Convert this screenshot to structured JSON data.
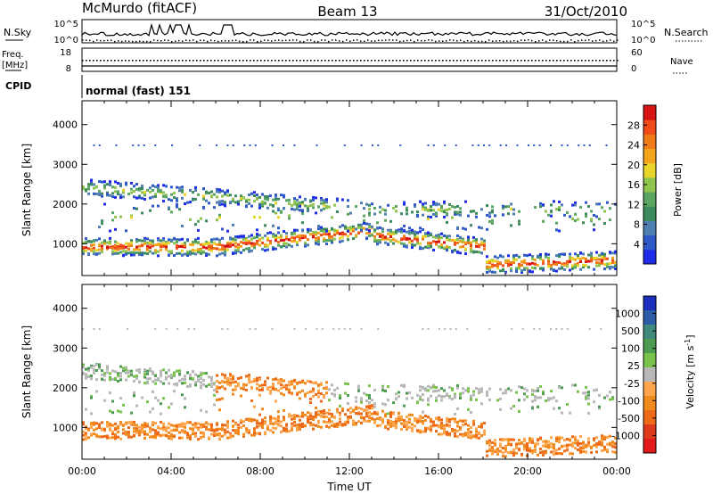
{
  "header": {
    "title": "McMurdo (fitACF)",
    "beam": "Beam 13",
    "date": "31/Oct/2010"
  },
  "top_panels": {
    "nsky_label": "N.Sky",
    "nsearch_label": "N.Search",
    "nsky_ticks": [
      "10^5",
      "10^0"
    ],
    "nsearch_ticks": [
      "10^5",
      "10^0"
    ],
    "freq_label_1": "Freq.",
    "freq_label_2": "[MHz]",
    "freq_ticks": [
      "18",
      "8"
    ],
    "nave_label": "Nave",
    "nave_ticks": [
      "60",
      "0"
    ],
    "cpid_label": "CPID",
    "cpid_value": "normal (fast) 151"
  },
  "colors": {
    "power_scale": [
      "#1e2be8",
      "#2f58c8",
      "#4f7fb2",
      "#3d8a5e",
      "#5aa562",
      "#8fc44f",
      "#e7d52a",
      "#f4a51e",
      "#f07a18",
      "#ef4a18",
      "#d71414"
    ],
    "velocity_scale": [
      "#1c2fbd",
      "#2c5ca8",
      "#3f8a7a",
      "#4e9b52",
      "#79c34c",
      "#b8b8b8",
      "#ffa64d",
      "#f08a1c",
      "#ee6a19",
      "#e03a1c",
      "#e21a1a"
    ]
  },
  "chart_data": [
    {
      "type": "heatmap",
      "title": "Power",
      "xlabel": "",
      "ylabel": "Slant Range [km]",
      "colorbar_label": "Power [dB]",
      "colorbar_ticks": [
        "28",
        "24",
        "20",
        "16",
        "12",
        "8",
        "4"
      ],
      "colorbar_values": [
        28,
        24,
        20,
        16,
        12,
        8,
        4
      ],
      "colorbar_range": [
        0,
        32
      ],
      "x_ticks": [
        "00:00",
        "04:00",
        "08:00",
        "12:00",
        "16:00",
        "20:00",
        "00:00"
      ],
      "xlim": [
        0,
        24
      ],
      "y_ticks": [
        "1000",
        "2000",
        "3000",
        "4000"
      ],
      "ylim": [
        200,
        4600
      ],
      "grid": false
    },
    {
      "type": "heatmap",
      "title": "Velocity",
      "xlabel": "Time UT",
      "ylabel": "Slant Range [km]",
      "colorbar_label": "Velocity [m s^-1]",
      "colorbar_ticks": [
        "1000",
        "500",
        "100",
        "25",
        "-25",
        "-100",
        "-500",
        "-1000"
      ],
      "x_ticks": [
        "00:00",
        "04:00",
        "08:00",
        "12:00",
        "16:00",
        "20:00",
        "00:00"
      ],
      "xlim": [
        0,
        24
      ],
      "y_ticks": [
        "1000",
        "2000",
        "3000",
        "4000"
      ],
      "ylim": [
        200,
        4600
      ],
      "grid": false
    }
  ]
}
